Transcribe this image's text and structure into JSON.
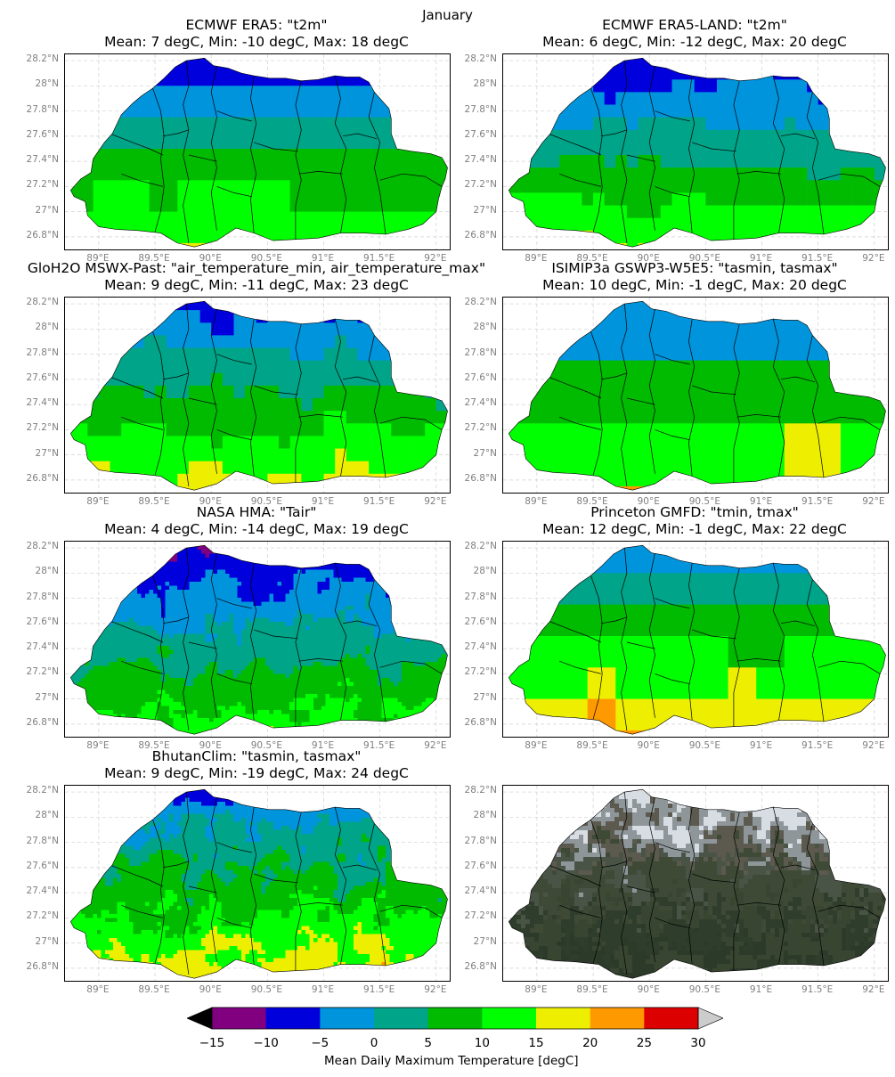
{
  "figure": {
    "suptitle": "January",
    "colorbar_label": "Mean Daily Maximum Temperature [degC]",
    "colorbar_ticks": [
      "−15",
      "−10",
      "−5",
      "0",
      "5",
      "10",
      "15",
      "20",
      "25",
      "30"
    ],
    "colorbar_colors": [
      "#800080",
      "#0000dd",
      "#0094dd",
      "#00a488",
      "#00bb00",
      "#00ff00",
      "#eeee00",
      "#ff9900",
      "#dd0000"
    ],
    "under_color": "#000000",
    "over_color": "#cccccc",
    "lon_ticks": [
      "89°E",
      "89.5°E",
      "90°E",
      "90.5°E",
      "91°E",
      "91.5°E",
      "92°E"
    ],
    "lat_ticks": [
      "28.2°N",
      "28°N",
      "27.8°N",
      "27.6°N",
      "27.4°N",
      "27.2°N",
      "27°N",
      "26.8°N"
    ]
  },
  "chart_data": [
    {
      "type": "heatmap",
      "title_line1": "ECMWF ERA5: \"t2m\"",
      "title_line2": "Mean: 7 degC, Min: -10 degC, Max: 18 degC",
      "mean": 7,
      "min": -10,
      "max": 18,
      "lon_range": [
        88.7,
        92.1
      ],
      "lat_range": [
        26.7,
        28.25
      ],
      "grid": true,
      "units": "degC"
    },
    {
      "type": "heatmap",
      "title_line1": "ECMWF ERA5-LAND: \"t2m\"",
      "title_line2": "Mean: 6 degC, Min: -12 degC, Max: 20 degC",
      "mean": 6,
      "min": -12,
      "max": 20,
      "lon_range": [
        88.7,
        92.1
      ],
      "lat_range": [
        26.7,
        28.25
      ],
      "grid": true,
      "units": "degC"
    },
    {
      "type": "heatmap",
      "title_line1": "GloH2O MSWX-Past: \"air_temperature_min, air_temperature_max\"",
      "title_line2": "Mean: 9 degC, Min: -11 degC, Max: 23 degC",
      "mean": 9,
      "min": -11,
      "max": 23,
      "lon_range": [
        88.7,
        92.1
      ],
      "lat_range": [
        26.7,
        28.25
      ],
      "grid": true,
      "units": "degC"
    },
    {
      "type": "heatmap",
      "title_line1": "ISIMIP3a GSWP3-W5E5: \"tasmin, tasmax\"",
      "title_line2": "Mean: 10 degC, Min: -1 degC, Max: 20 degC",
      "mean": 10,
      "min": -1,
      "max": 20,
      "lon_range": [
        88.7,
        92.1
      ],
      "lat_range": [
        26.7,
        28.25
      ],
      "grid": true,
      "units": "degC"
    },
    {
      "type": "heatmap",
      "title_line1": "NASA HMA: \"Tair\"",
      "title_line2": "Mean: 4 degC, Min: -14 degC, Max: 19 degC",
      "mean": 4,
      "min": -14,
      "max": 19,
      "lon_range": [
        88.7,
        92.1
      ],
      "lat_range": [
        26.7,
        28.25
      ],
      "grid": true,
      "units": "degC"
    },
    {
      "type": "heatmap",
      "title_line1": "Princeton GMFD: \"tmin, tmax\"",
      "title_line2": "Mean: 12 degC, Min: -1 degC, Max: 22 degC",
      "mean": 12,
      "min": -1,
      "max": 22,
      "lon_range": [
        88.7,
        92.1
      ],
      "lat_range": [
        26.7,
        28.25
      ],
      "grid": true,
      "units": "degC"
    },
    {
      "type": "heatmap",
      "title_line1": "BhutanClim: \"tasmin, tasmax\"",
      "title_line2": "Mean: 9 degC, Min: -19 degC, Max: 24 degC",
      "mean": 9,
      "min": -19,
      "max": 24,
      "lon_range": [
        88.7,
        92.1
      ],
      "lat_range": [
        26.7,
        28.25
      ],
      "grid": true,
      "units": "degC"
    },
    {
      "type": "heatmap",
      "title_line1": "",
      "title_line2": "",
      "lon_range": [
        88.7,
        92.1
      ],
      "lat_range": [
        26.7,
        28.25
      ],
      "grid": true,
      "imagery": "satellite-terrain"
    }
  ]
}
